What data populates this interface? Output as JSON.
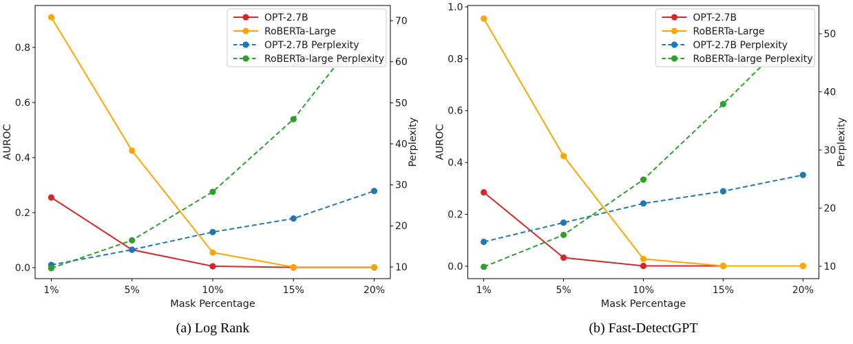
{
  "chart_data": [
    {
      "id": "a",
      "type": "line",
      "caption": "(a) Log Rank",
      "xlabel": "Mask Percentage",
      "categories": [
        "1%",
        "5%",
        "10%",
        "15%",
        "20%"
      ],
      "axes": {
        "left": {
          "label": "AUROC",
          "tick_labels": [
            "0.0",
            "0.2",
            "0.4",
            "0.6",
            "0.8"
          ],
          "tick_values": [
            0.0,
            0.2,
            0.4,
            0.6,
            0.8
          ],
          "range": [
            -0.04,
            0.9525
          ]
        },
        "right": {
          "label": "Perplexity",
          "tick_labels": [
            "10",
            "20",
            "30",
            "40",
            "50",
            "60",
            "70"
          ],
          "tick_values": [
            10,
            20,
            30,
            40,
            50,
            60,
            70
          ],
          "range": [
            7.15,
            73.7
          ]
        }
      },
      "legend": {
        "position": "upper right"
      },
      "series": [
        {
          "name": "OPT-2.7B",
          "axis": "left",
          "color": "#d62728",
          "style": "solid",
          "values": [
            0.255,
            0.065,
            0.005,
            0.001,
            0.001
          ]
        },
        {
          "name": "RoBERTa-Large",
          "axis": "left",
          "color": "#ffa500",
          "style": "solid",
          "values": [
            0.91,
            0.425,
            0.055,
            0.002,
            0.002
          ]
        },
        {
          "name": "OPT-2.7B Perplexity",
          "axis": "right",
          "color": "#1f77b4",
          "style": "dashed",
          "values": [
            10.5,
            14.2,
            18.5,
            21.8,
            28.5
          ]
        },
        {
          "name": "RoBERTa-large Perplexity",
          "axis": "right",
          "color": "#2ca02c",
          "style": "dashed",
          "values": [
            9.7,
            16.5,
            28.3,
            46.0,
            71.0
          ]
        }
      ]
    },
    {
      "id": "b",
      "type": "line",
      "caption": "(b) Fast-DetectGPT",
      "xlabel": "Mask Percentage",
      "categories": [
        "1%",
        "5%",
        "10%",
        "15%",
        "20%"
      ],
      "axes": {
        "left": {
          "label": "AUROC",
          "tick_labels": [
            "0.0",
            "0.2",
            "0.4",
            "0.6",
            "0.8",
            "1.0"
          ],
          "tick_values": [
            0.0,
            0.2,
            0.4,
            0.6,
            0.8,
            1.0
          ],
          "range": [
            -0.048,
            1.0055
          ]
        },
        "right": {
          "label": "Perplexity",
          "tick_labels": [
            "10",
            "20",
            "30",
            "40",
            "50"
          ],
          "tick_values": [
            10,
            20,
            30,
            40,
            50
          ],
          "range": [
            7.87,
            54.85
          ]
        }
      },
      "legend": {
        "position": "upper right"
      },
      "series": [
        {
          "name": "OPT-2.7B",
          "axis": "left",
          "color": "#d62728",
          "style": "solid",
          "values": [
            0.285,
            0.033,
            0.001,
            0.001,
            0.001
          ]
        },
        {
          "name": "RoBERTa-Large",
          "axis": "left",
          "color": "#ffa500",
          "style": "solid",
          "values": [
            0.955,
            0.425,
            0.028,
            0.001,
            0.001
          ]
        },
        {
          "name": "OPT-2.7B Perplexity",
          "axis": "right",
          "color": "#1f77b4",
          "style": "dashed",
          "values": [
            14.2,
            17.5,
            20.8,
            22.9,
            25.7
          ]
        },
        {
          "name": "RoBERTa-large Perplexity",
          "axis": "right",
          "color": "#2ca02c",
          "style": "dashed",
          "values": [
            9.9,
            15.4,
            24.9,
            37.9,
            51.5
          ]
        }
      ]
    }
  ],
  "style": {
    "spine_color": "#000000",
    "text_color": "#1a1a1a",
    "legend_border_color": "#cccccc",
    "legend_bg_color": "#ffffff"
  }
}
